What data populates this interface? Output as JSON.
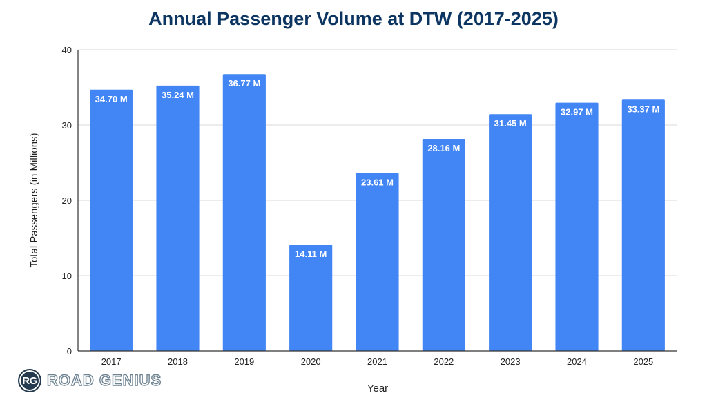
{
  "chart_data": {
    "type": "bar",
    "title": "Annual Passenger Volume at DTW (2017-2025)",
    "xlabel": "Year",
    "ylabel": "Total Passengers (in Millions)",
    "categories": [
      "2017",
      "2018",
      "2019",
      "2020",
      "2021",
      "2022",
      "2023",
      "2024",
      "2025"
    ],
    "values": [
      34.7,
      35.24,
      36.77,
      14.11,
      23.61,
      28.16,
      31.45,
      32.97,
      33.37
    ],
    "data_labels": [
      "34.70 M",
      "35.24 M",
      "36.77 M",
      "14.11 M",
      "23.61 M",
      "28.16 M",
      "31.45 M",
      "32.97 M",
      "33.37 M"
    ],
    "ylim": [
      0,
      40
    ],
    "yticks": [
      0,
      10,
      20,
      30,
      40
    ],
    "ytick_labels": [
      "0",
      "10",
      "20",
      "30",
      "40"
    ],
    "grid": true,
    "legend": "none",
    "bar_color": "#4285f4",
    "title_color": "#0d3561"
  },
  "branding": {
    "logo_initials": "RG",
    "logo_text": "ROAD GENIUS"
  }
}
